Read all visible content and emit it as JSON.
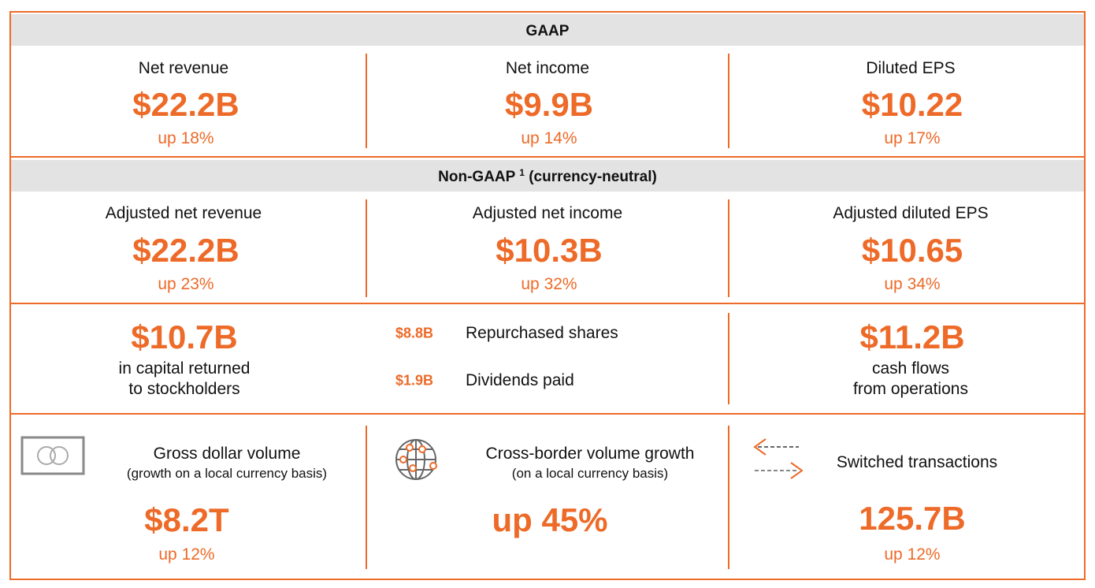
{
  "gaap": {
    "title": "GAAP",
    "items": [
      {
        "label": "Net revenue",
        "value": "$22.2B",
        "change": "up 18%"
      },
      {
        "label": "Net income",
        "value": "$9.9B",
        "change": "up 14%"
      },
      {
        "label": "Diluted EPS",
        "value": "$10.22",
        "change": "up 17%"
      }
    ]
  },
  "non_gaap": {
    "title": "Non-GAAP",
    "footnote": "1",
    "qualifier": "(currency-neutral)",
    "items": [
      {
        "label": "Adjusted net revenue",
        "value": "$22.2B",
        "change": "up 23%"
      },
      {
        "label": "Adjusted net income",
        "value": "$10.3B",
        "change": "up 32%"
      },
      {
        "label": "Adjusted diluted EPS",
        "value": "$10.65",
        "change": "up 34%"
      }
    ]
  },
  "capital_returned": {
    "value": "$10.7B",
    "lines": [
      "in capital returned",
      "to stockholders"
    ],
    "breakdown": [
      {
        "value": "$8.8B",
        "label": "Repurchased shares"
      },
      {
        "value": "$1.9B",
        "label": "Dividends paid"
      }
    ]
  },
  "cash_flows": {
    "value": "$11.2B",
    "lines": [
      "cash flows",
      "from operations"
    ]
  },
  "volume": {
    "items": [
      {
        "label": "Gross dollar volume",
        "sublabel": "(growth on a local currency basis)",
        "value": "$8.2T",
        "change": "up 12%"
      },
      {
        "label": "Cross-border volume growth",
        "sublabel": "(on a local currency basis)",
        "value": "up 45%"
      },
      {
        "label": "Switched transactions",
        "value": "125.7B",
        "change": "up 12%"
      }
    ]
  }
}
